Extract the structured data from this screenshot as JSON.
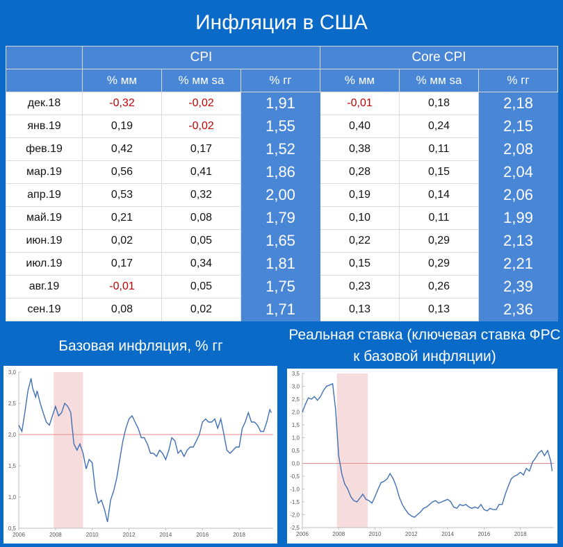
{
  "title": "Инфляция в США",
  "table": {
    "groups": [
      "CPI",
      "Core CPI"
    ],
    "subheaders": [
      "% мм",
      "% мм sa",
      "% гг",
      "% мм",
      "% мм sa",
      "% гг"
    ],
    "rows": [
      {
        "label": "дек.18",
        "cells": [
          "-0,32",
          "-0,02",
          "1,91",
          "-0,01",
          "0,18",
          "2,18"
        ]
      },
      {
        "label": "янв.19",
        "cells": [
          "0,19",
          "-0,02",
          "1,55",
          "0,40",
          "0,24",
          "2,15"
        ]
      },
      {
        "label": "фев.19",
        "cells": [
          "0,42",
          "0,17",
          "1,52",
          "0,38",
          "0,11",
          "2,08"
        ]
      },
      {
        "label": "мар.19",
        "cells": [
          "0,56",
          "0,41",
          "1,86",
          "0,28",
          "0,15",
          "2,04"
        ]
      },
      {
        "label": "апр.19",
        "cells": [
          "0,53",
          "0,32",
          "2,00",
          "0,19",
          "0,14",
          "2,06"
        ]
      },
      {
        "label": "май.19",
        "cells": [
          "0,21",
          "0,08",
          "1,79",
          "0,10",
          "0,11",
          "1,99"
        ]
      },
      {
        "label": "июн.19",
        "cells": [
          "0,02",
          "0,05",
          "1,65",
          "0,22",
          "0,29",
          "2,13"
        ]
      },
      {
        "label": "июл.19",
        "cells": [
          "0,17",
          "0,34",
          "1,81",
          "0,15",
          "0,29",
          "2,21"
        ]
      },
      {
        "label": "авг.19",
        "cells": [
          "-0,01",
          "0,05",
          "1,75",
          "0,23",
          "0,26",
          "2,39"
        ]
      },
      {
        "label": "сен.19",
        "cells": [
          "0,08",
          "0,02",
          "1,71",
          "0,13",
          "0,13",
          "2,36"
        ]
      }
    ],
    "negative_color": "#c00000",
    "highlight_color": "#4a86d6"
  },
  "chart_data": [
    {
      "type": "line",
      "title": "Базовая инфляция, % гг",
      "ylim": [
        0.5,
        3.0
      ],
      "yticks": [
        "0,5",
        "1,0",
        "1,5",
        "2,0",
        "2,5",
        "3,0"
      ],
      "xlim": [
        2006,
        2019.85
      ],
      "xticks": [
        "2006",
        "2008",
        "2010",
        "2012",
        "2014",
        "2016",
        "2018"
      ],
      "reference_line": 2.0,
      "recession_band": [
        2007.9,
        2009.5
      ],
      "series": [
        {
          "values": [
            [
              2006.0,
              2.15
            ],
            [
              2006.17,
              2.05
            ],
            [
              2006.33,
              2.35
            ],
            [
              2006.5,
              2.7
            ],
            [
              2006.67,
              2.9
            ],
            [
              2006.75,
              2.75
            ],
            [
              2006.92,
              2.6
            ],
            [
              2007.0,
              2.7
            ],
            [
              2007.17,
              2.5
            ],
            [
              2007.33,
              2.35
            ],
            [
              2007.5,
              2.2
            ],
            [
              2007.67,
              2.15
            ],
            [
              2007.83,
              2.3
            ],
            [
              2008.0,
              2.45
            ],
            [
              2008.17,
              2.3
            ],
            [
              2008.33,
              2.35
            ],
            [
              2008.5,
              2.5
            ],
            [
              2008.67,
              2.45
            ],
            [
              2008.83,
              2.35
            ],
            [
              2009.0,
              1.85
            ],
            [
              2009.17,
              1.75
            ],
            [
              2009.33,
              1.85
            ],
            [
              2009.5,
              1.7
            ],
            [
              2009.67,
              1.45
            ],
            [
              2009.83,
              1.6
            ],
            [
              2010.0,
              1.55
            ],
            [
              2010.17,
              1.1
            ],
            [
              2010.33,
              0.9
            ],
            [
              2010.5,
              0.95
            ],
            [
              2010.67,
              0.8
            ],
            [
              2010.83,
              0.6
            ],
            [
              2011.0,
              0.95
            ],
            [
              2011.17,
              1.1
            ],
            [
              2011.33,
              1.3
            ],
            [
              2011.5,
              1.6
            ],
            [
              2011.67,
              1.9
            ],
            [
              2011.83,
              2.1
            ],
            [
              2012.0,
              2.25
            ],
            [
              2012.17,
              2.3
            ],
            [
              2012.33,
              2.2
            ],
            [
              2012.5,
              2.1
            ],
            [
              2012.67,
              1.95
            ],
            [
              2012.83,
              1.95
            ],
            [
              2013.0,
              1.85
            ],
            [
              2013.17,
              1.7
            ],
            [
              2013.33,
              1.7
            ],
            [
              2013.5,
              1.65
            ],
            [
              2013.67,
              1.75
            ],
            [
              2013.83,
              1.7
            ],
            [
              2014.0,
              1.6
            ],
            [
              2014.17,
              1.75
            ],
            [
              2014.33,
              1.95
            ],
            [
              2014.5,
              1.9
            ],
            [
              2014.67,
              1.7
            ],
            [
              2014.83,
              1.75
            ],
            [
              2015.0,
              1.65
            ],
            [
              2015.17,
              1.75
            ],
            [
              2015.33,
              1.8
            ],
            [
              2015.5,
              1.8
            ],
            [
              2015.67,
              1.9
            ],
            [
              2015.83,
              2.0
            ],
            [
              2016.0,
              2.2
            ],
            [
              2016.17,
              2.25
            ],
            [
              2016.33,
              2.2
            ],
            [
              2016.5,
              2.2
            ],
            [
              2016.67,
              2.25
            ],
            [
              2016.83,
              2.1
            ],
            [
              2017.0,
              2.25
            ],
            [
              2017.17,
              2.0
            ],
            [
              2017.33,
              1.75
            ],
            [
              2017.5,
              1.7
            ],
            [
              2017.67,
              1.75
            ],
            [
              2017.83,
              1.8
            ],
            [
              2018.0,
              1.8
            ],
            [
              2018.17,
              2.1
            ],
            [
              2018.33,
              2.2
            ],
            [
              2018.5,
              2.35
            ],
            [
              2018.67,
              2.2
            ],
            [
              2018.83,
              2.2
            ],
            [
              2019.0,
              2.15
            ],
            [
              2019.17,
              2.05
            ],
            [
              2019.33,
              2.05
            ],
            [
              2019.5,
              2.2
            ],
            [
              2019.67,
              2.4
            ],
            [
              2019.75,
              2.35
            ]
          ]
        }
      ]
    },
    {
      "type": "line",
      "title": "Реальная ставка (ключевая ставка ФРС к базовой инфляции)",
      "ylim": [
        -2.5,
        3.5
      ],
      "yticks": [
        "-2,5",
        "-2,0",
        "-1,5",
        "-1,0",
        "-0,5",
        "0,0",
        "0,5",
        "1,0",
        "1,5",
        "2,0",
        "2,5",
        "3,0",
        "3,5"
      ],
      "xlim": [
        2006,
        2019.85
      ],
      "xticks": [
        "2006",
        "2008",
        "2010",
        "2012",
        "2014",
        "2016",
        "2018"
      ],
      "reference_line": 0.0,
      "recession_band": [
        2007.9,
        2009.6
      ],
      "series": [
        {
          "values": [
            [
              2006.0,
              2.0
            ],
            [
              2006.17,
              2.3
            ],
            [
              2006.33,
              2.55
            ],
            [
              2006.5,
              2.5
            ],
            [
              2006.67,
              2.6
            ],
            [
              2006.83,
              2.45
            ],
            [
              2007.0,
              2.6
            ],
            [
              2007.17,
              2.85
            ],
            [
              2007.33,
              3.0
            ],
            [
              2007.5,
              3.05
            ],
            [
              2007.67,
              3.1
            ],
            [
              2007.83,
              2.1
            ],
            [
              2008.0,
              0.3
            ],
            [
              2008.17,
              -0.4
            ],
            [
              2008.33,
              -0.8
            ],
            [
              2008.5,
              -1.0
            ],
            [
              2008.67,
              -1.3
            ],
            [
              2008.83,
              -1.45
            ],
            [
              2009.0,
              -1.5
            ],
            [
              2009.17,
              -1.35
            ],
            [
              2009.33,
              -1.2
            ],
            [
              2009.5,
              -1.4
            ],
            [
              2009.67,
              -1.45
            ],
            [
              2009.83,
              -1.55
            ],
            [
              2010.0,
              -1.3
            ],
            [
              2010.17,
              -1.0
            ],
            [
              2010.33,
              -0.75
            ],
            [
              2010.5,
              -0.7
            ],
            [
              2010.67,
              -0.6
            ],
            [
              2010.83,
              -0.4
            ],
            [
              2011.0,
              -0.6
            ],
            [
              2011.17,
              -0.9
            ],
            [
              2011.33,
              -1.3
            ],
            [
              2011.5,
              -1.6
            ],
            [
              2011.67,
              -1.8
            ],
            [
              2011.83,
              -1.95
            ],
            [
              2012.0,
              -2.05
            ],
            [
              2012.17,
              -2.1
            ],
            [
              2012.33,
              -2.0
            ],
            [
              2012.5,
              -1.9
            ],
            [
              2012.67,
              -1.75
            ],
            [
              2012.83,
              -1.7
            ],
            [
              2013.0,
              -1.6
            ],
            [
              2013.17,
              -1.5
            ],
            [
              2013.33,
              -1.45
            ],
            [
              2013.5,
              -1.55
            ],
            [
              2013.67,
              -1.5
            ],
            [
              2013.83,
              -1.45
            ],
            [
              2014.0,
              -1.4
            ],
            [
              2014.17,
              -1.5
            ],
            [
              2014.33,
              -1.7
            ],
            [
              2014.5,
              -1.75
            ],
            [
              2014.67,
              -1.6
            ],
            [
              2014.83,
              -1.65
            ],
            [
              2015.0,
              -1.6
            ],
            [
              2015.17,
              -1.7
            ],
            [
              2015.33,
              -1.75
            ],
            [
              2015.5,
              -1.7
            ],
            [
              2015.67,
              -1.75
            ],
            [
              2015.83,
              -1.6
            ],
            [
              2016.0,
              -1.8
            ],
            [
              2016.17,
              -1.85
            ],
            [
              2016.33,
              -1.75
            ],
            [
              2016.5,
              -1.8
            ],
            [
              2016.67,
              -1.8
            ],
            [
              2016.83,
              -1.6
            ],
            [
              2017.0,
              -1.6
            ],
            [
              2017.17,
              -1.2
            ],
            [
              2017.33,
              -0.9
            ],
            [
              2017.5,
              -0.6
            ],
            [
              2017.67,
              -0.5
            ],
            [
              2017.83,
              -0.45
            ],
            [
              2018.0,
              -0.35
            ],
            [
              2018.17,
              -0.45
            ],
            [
              2018.33,
              -0.2
            ],
            [
              2018.5,
              -0.3
            ],
            [
              2018.67,
              0.05
            ],
            [
              2018.83,
              0.2
            ],
            [
              2019.0,
              0.4
            ],
            [
              2019.17,
              0.5
            ],
            [
              2019.33,
              0.3
            ],
            [
              2019.5,
              0.5
            ],
            [
              2019.67,
              0.1
            ],
            [
              2019.75,
              -0.3
            ]
          ]
        }
      ]
    }
  ]
}
